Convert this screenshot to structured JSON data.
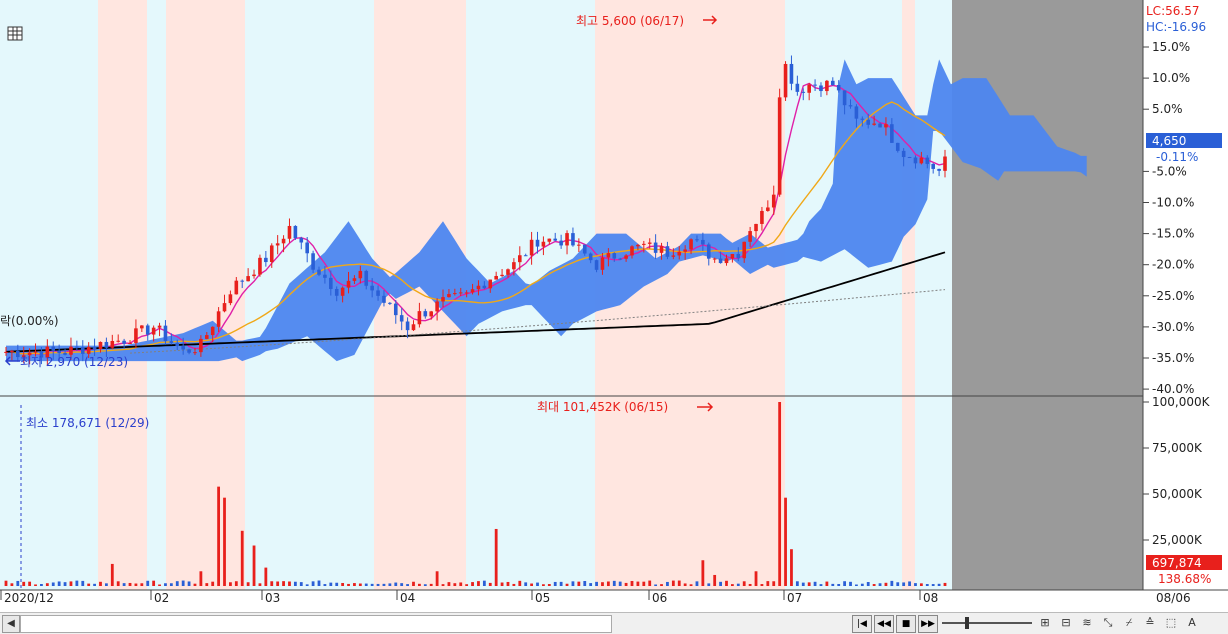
{
  "chart_data": {
    "type": "candlestick",
    "price_axis": {
      "ticks": [
        "15.0%",
        "10.0%",
        "5.0%",
        "-0.11%",
        "-5.0%",
        "-10.0%",
        "-15.0%",
        "-20.0%",
        "-25.0%",
        "-30.0%",
        "-35.0%",
        "-40.0%"
      ],
      "tick_values": [
        15,
        10,
        5,
        0,
        -5,
        -10,
        -15,
        -20,
        -25,
        -30,
        -35,
        -40
      ],
      "lc_label": "LC:56.57",
      "hc_label": "HC:-16.96",
      "current_price_label": "4,650",
      "current_change_label": "-0.11%"
    },
    "volume_axis": {
      "ticks": [
        "100,000K",
        "75,000K",
        "50,000K",
        "25,000K"
      ],
      "tick_values": [
        100000,
        75000,
        50000,
        25000
      ],
      "current_volume_label": "697,874",
      "current_volume_pct_label": "138.68%"
    },
    "x_axis": {
      "ticks": [
        "2020/12",
        "02",
        "03",
        "04",
        "05",
        "06",
        "07",
        "08"
      ],
      "right_label": "08/06"
    },
    "annotations": {
      "high": "최고 5,600 (06/17)",
      "low": "최저 2,970 (12/23)",
      "left_cut": "락(0.00%)",
      "vol_max": "최대 101,452K (06/15)",
      "vol_min": "최소 178,671 (12/29)"
    },
    "ylim_pct": [
      -40,
      20
    ],
    "volume_ylim": [
      0,
      100000
    ],
    "colors": {
      "up": "#e8201c",
      "down": "#2a5fd6",
      "ichimoku_cloud": "#4d86ef",
      "ma_short": "#e020a8",
      "ma_mid": "#f0a818",
      "ma_long": "#000000",
      "ma_longer": "#808080",
      "shade_red": "#ffe6e0",
      "shade_cyan": "#e4f8fc",
      "future_area": "#9a9a9a"
    }
  },
  "toolbar": {
    "scroll_left": "◀",
    "nav": [
      "|◀",
      "◀◀",
      "■",
      "▶▶"
    ],
    "tools": [
      "⊞",
      "⊟",
      "≋",
      "⤡",
      "⌿",
      "≙",
      "⬚",
      "A"
    ]
  }
}
